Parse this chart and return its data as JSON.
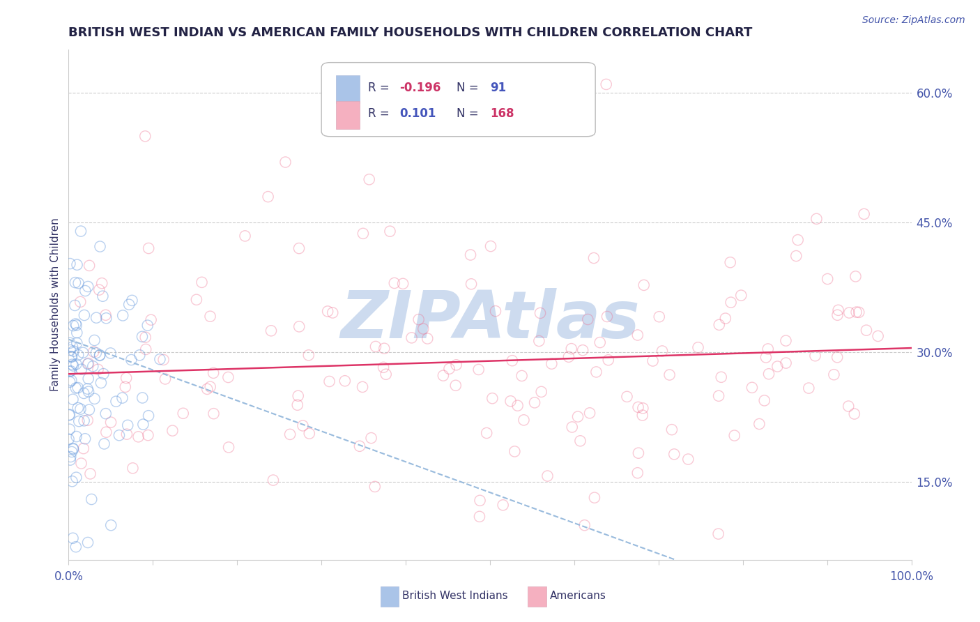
{
  "title": "BRITISH WEST INDIAN VS AMERICAN FAMILY HOUSEHOLDS WITH CHILDREN CORRELATION CHART",
  "source_text": "Source: ZipAtlas.com",
  "ylabel": "Family Households with Children",
  "xlim": [
    0.0,
    1.0
  ],
  "ylim": [
    0.06,
    0.65
  ],
  "yticks": [
    0.15,
    0.3,
    0.45,
    0.6
  ],
  "ytick_labels": [
    "15.0%",
    "30.0%",
    "45.0%",
    "60.0%"
  ],
  "series_blue": {
    "R": -0.196,
    "N": 91,
    "color": "#6699dd",
    "size": 120,
    "alpha": 0.45,
    "linewidths": 1.0
  },
  "series_pink": {
    "R": 0.101,
    "N": 168,
    "color": "#ee6688",
    "size": 120,
    "alpha": 0.35,
    "linewidths": 1.0
  },
  "trend_blue": {
    "color": "#99bbdd",
    "linestyle": "--",
    "linewidth": 1.5,
    "x_start": 0.0,
    "x_end": 0.72,
    "y_start": 0.315,
    "y_end": 0.06
  },
  "trend_pink": {
    "color": "#dd3366",
    "linestyle": "-",
    "linewidth": 1.8,
    "x_start": 0.0,
    "x_end": 1.0,
    "y_start": 0.275,
    "y_end": 0.305
  },
  "watermark": "ZIPAtlas",
  "watermark_color": "#c8d8ee",
  "background_color": "#ffffff",
  "grid_color": "#cccccc",
  "title_color": "#222244",
  "axis_label_color": "#333366",
  "tick_color": "#4455aa",
  "legend_blue_color": "#aac4e8",
  "legend_pink_color": "#f5b0c0",
  "legend_r1_val": "-0.196",
  "legend_r1_n": "91",
  "legend_r2_val": "0.101",
  "legend_r2_n": "168",
  "legend_r_color": "#cc3366",
  "legend_n_color": "#4455bb",
  "legend_label_color": "#333366",
  "figsize": [
    14.06,
    8.92
  ],
  "dpi": 100
}
